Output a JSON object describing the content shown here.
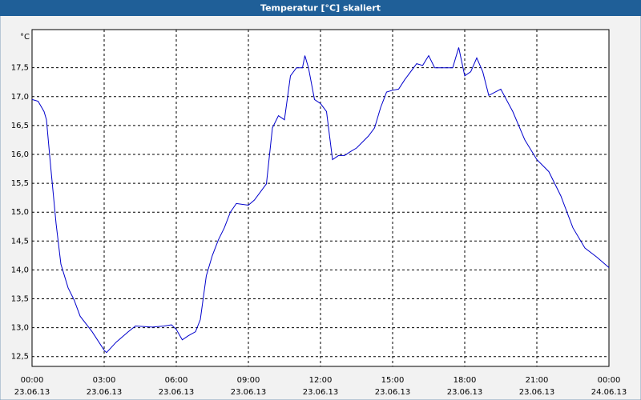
{
  "chart_data": {
    "type": "line",
    "title": "Temperatur [°C] skaliert",
    "unit_label": "°C",
    "x": [
      0,
      0.25,
      0.5,
      0.6,
      0.75,
      1.0,
      1.2,
      1.5,
      1.75,
      2.0,
      2.5,
      3.0,
      3.1,
      3.5,
      4.0,
      4.3,
      5.0,
      5.5,
      5.8,
      6.0,
      6.25,
      6.5,
      6.8,
      7.0,
      7.25,
      7.5,
      7.75,
      8.0,
      8.25,
      8.5,
      9.0,
      9.25,
      9.5,
      9.75,
      10.0,
      10.25,
      10.5,
      10.75,
      11.0,
      11.25,
      11.35,
      11.5,
      11.75,
      12.0,
      12.25,
      12.5,
      12.75,
      13.0,
      13.25,
      13.5,
      14.0,
      14.25,
      14.5,
      14.75,
      15.0,
      15.25,
      15.5,
      16.0,
      16.25,
      16.5,
      16.75,
      17.0,
      17.5,
      17.75,
      18.0,
      18.25,
      18.5,
      18.75,
      19.0,
      19.5,
      20.0,
      20.5,
      21.0,
      21.5,
      22.0,
      22.5,
      23.0,
      23.5,
      24.0
    ],
    "series": [
      {
        "name": "Temperatur",
        "color": "#0000cc",
        "values": [
          16.95,
          16.92,
          16.74,
          16.6,
          15.9,
          14.8,
          14.1,
          13.69,
          13.48,
          13.2,
          12.93,
          12.61,
          12.57,
          12.75,
          12.93,
          13.03,
          13.01,
          13.03,
          13.05,
          12.97,
          12.79,
          12.86,
          12.93,
          13.14,
          13.9,
          14.25,
          14.52,
          14.73,
          15.0,
          15.15,
          15.12,
          15.21,
          15.35,
          15.49,
          16.46,
          16.67,
          16.6,
          17.36,
          17.5,
          17.5,
          17.71,
          17.5,
          16.95,
          16.88,
          16.74,
          15.91,
          15.98,
          15.98,
          16.05,
          16.11,
          16.32,
          16.46,
          16.81,
          17.08,
          17.11,
          17.13,
          17.29,
          17.57,
          17.54,
          17.71,
          17.5,
          17.5,
          17.5,
          17.85,
          17.36,
          17.43,
          17.67,
          17.43,
          17.02,
          17.13,
          16.74,
          16.25,
          15.91,
          15.7,
          15.28,
          14.73,
          14.38,
          14.22,
          14.04
        ]
      }
    ],
    "xlim": [
      0,
      24
    ],
    "xticks": [
      {
        "value": 0,
        "label": "00:00",
        "date": "23.06.13"
      },
      {
        "value": 3,
        "label": "03:00",
        "date": "23.06.13"
      },
      {
        "value": 6,
        "label": "06:00",
        "date": "23.06.13"
      },
      {
        "value": 9,
        "label": "09:00",
        "date": "23.06.13"
      },
      {
        "value": 12,
        "label": "12:00",
        "date": "23.06.13"
      },
      {
        "value": 15,
        "label": "15:00",
        "date": "23.06.13"
      },
      {
        "value": 18,
        "label": "18:00",
        "date": "23.06.13"
      },
      {
        "value": 21,
        "label": "21:00",
        "date": "23.06.13"
      },
      {
        "value": 24,
        "label": "00:00",
        "date": "24.06.13"
      }
    ],
    "ylim": [
      12.33,
      18.16
    ],
    "yticks": [
      {
        "value": 12.5,
        "label": "12,5"
      },
      {
        "value": 13,
        "label": "13,0"
      },
      {
        "value": 13.5,
        "label": "13,5"
      },
      {
        "value": 14,
        "label": "14,0"
      },
      {
        "value": 14.5,
        "label": "14,5"
      },
      {
        "value": 15,
        "label": "15,0"
      },
      {
        "value": 15.5,
        "label": "15,5"
      },
      {
        "value": 16,
        "label": "16,0"
      },
      {
        "value": 16.5,
        "label": "16,5"
      },
      {
        "value": 17,
        "label": "17,0"
      },
      {
        "value": 17.5,
        "label": "17,5"
      }
    ],
    "grid": true
  }
}
